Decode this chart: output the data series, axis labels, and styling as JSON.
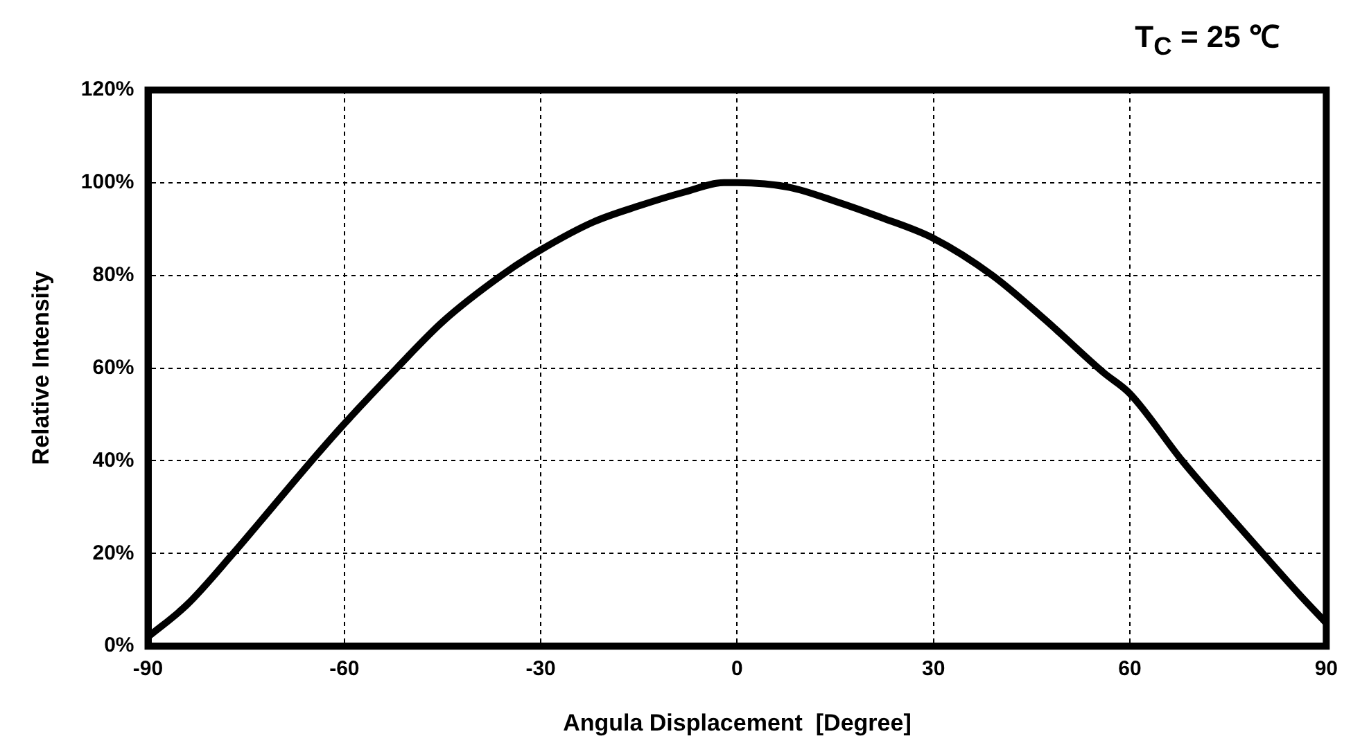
{
  "chart_data": {
    "type": "line",
    "xlabel": "Angula Displacement  [Degree]",
    "ylabel": "Relative Intensity",
    "annotations": [
      "T$_{C}$ = 25 ℃"
    ],
    "series": [
      {
        "color": "#000000",
        "x": [
          -90,
          -84,
          -77,
          -71,
          -65,
          -60,
          -52,
          -45,
          -36,
          -30,
          -22,
          -15,
          -8,
          -2,
          0,
          8,
          15,
          22,
          30,
          39,
          47,
          56,
          60,
          68,
          75,
          80,
          86,
          90
        ],
        "values": [
          2,
          9,
          20,
          30,
          40,
          48,
          60,
          70,
          80,
          85.5,
          91.5,
          95,
          98,
          100,
          100,
          99,
          96,
          92.5,
          88,
          80,
          70.5,
          59,
          54.5,
          40,
          28.5,
          20.5,
          11,
          5
        ]
      }
    ],
    "xlim": [
      -90,
      90
    ],
    "xticks": [
      -90,
      -60,
      -30,
      0,
      30,
      60,
      90
    ],
    "ylim": [
      0,
      120
    ],
    "yticks": [
      {
        "value": 0,
        "label": "0%"
      },
      {
        "value": 20,
        "label": "20%"
      },
      {
        "value": 40,
        "label": "40%"
      },
      {
        "value": 60,
        "label": "60%"
      },
      {
        "value": 80,
        "label": "80%"
      },
      {
        "value": 100,
        "label": "100%"
      },
      {
        "value": 120,
        "label": "120%"
      }
    ],
    "grid": true,
    "legend": false,
    "marker": "none",
    "line_style": "solid"
  }
}
